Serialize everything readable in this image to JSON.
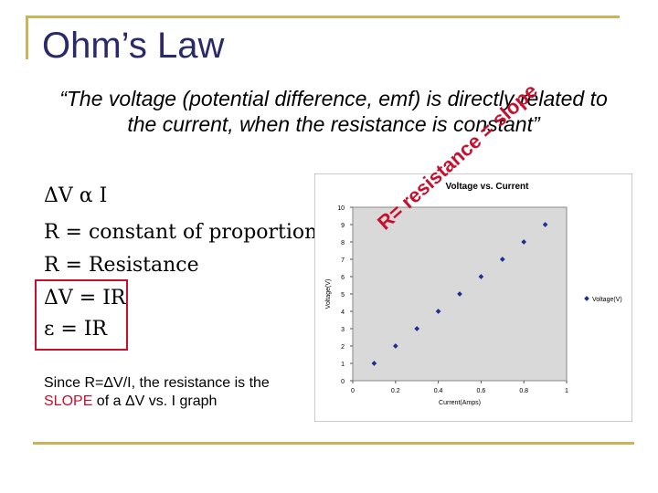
{
  "slide": {
    "title": "Ohm’s Law",
    "quote": "“The voltage (potential difference, emf) is directly related to the current, when the resistance is constant”",
    "equations": [
      "ΔV α I",
      "R = constant of proportionality",
      "R = Resistance",
      "ΔV = IR",
      "ε = IR"
    ],
    "since_text_1": "Since R=ΔV/I, the resistance is the ",
    "since_text_slope": "SLOPE",
    "since_text_2": " of a ΔV vs. I graph",
    "slope_annotation": "R= resistance = slope",
    "colors": {
      "accent_line": "#c9b45a",
      "title": "#2a2a6a",
      "highlight": "#c8102e",
      "marker": "#1f2f8f"
    }
  },
  "chart_data": {
    "type": "scatter",
    "title": "Voltage vs. Current",
    "xlabel": "Current(Amps)",
    "ylabel": "Voltage(V)",
    "xlim": [
      0,
      1
    ],
    "ylim": [
      0,
      10
    ],
    "xticks": [
      "0",
      "0.2",
      "0.4",
      "0.6",
      "0.8",
      "1"
    ],
    "yticks": [
      "0",
      "1",
      "2",
      "3",
      "4",
      "5",
      "6",
      "7",
      "8",
      "9",
      "10"
    ],
    "legend": "right",
    "grid": false,
    "series": [
      {
        "name": "Voltage(V)",
        "x": [
          0.1,
          0.2,
          0.3,
          0.4,
          0.5,
          0.6,
          0.7,
          0.8,
          0.9
        ],
        "y": [
          1,
          2,
          3,
          4,
          5,
          6,
          7,
          8,
          9
        ]
      }
    ]
  }
}
